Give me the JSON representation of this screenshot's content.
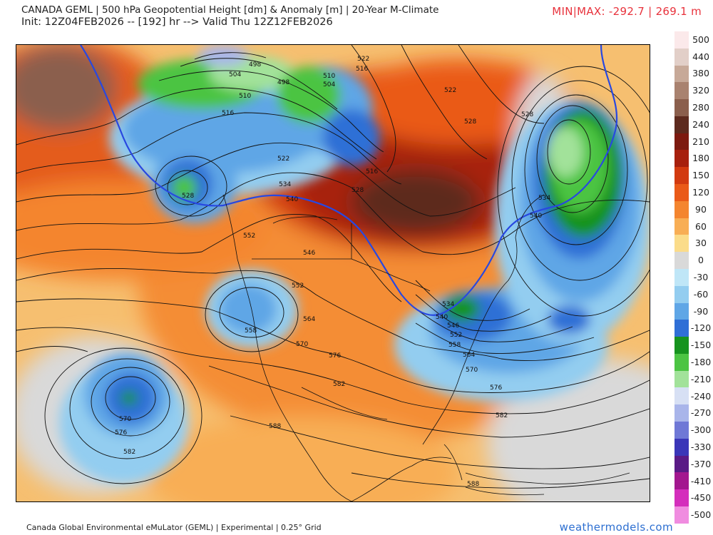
{
  "header": {
    "title": "CANADA GEML | 500 hPa Geopotential Height [dm] & Anomaly [m] | 20-Year M-Climate",
    "init": "Init: 12Z04FEB2026 -- [192] hr --> Valid Thu 12Z12FEB2026",
    "minmax": "MIN|MAX: -292.7 | 269.1 m"
  },
  "footer": {
    "model": "Canada Global Environmental eMuLator (GEML) | Experimental | 0.25° Grid",
    "brand": "weathermodels.com"
  },
  "colorbar": {
    "levels": [
      {
        "label": "500",
        "color": "#fbe9ea"
      },
      {
        "label": "440",
        "color": "#e2cfc8"
      },
      {
        "label": "380",
        "color": "#c7a998"
      },
      {
        "label": "320",
        "color": "#a9826f"
      },
      {
        "label": "280",
        "color": "#8b5f4d"
      },
      {
        "label": "240",
        "color": "#5d2a1e"
      },
      {
        "label": "210",
        "color": "#7d1a10"
      },
      {
        "label": "180",
        "color": "#a7200e"
      },
      {
        "label": "150",
        "color": "#d23a10"
      },
      {
        "label": "120",
        "color": "#ea5a18"
      },
      {
        "label": "90",
        "color": "#f4852f"
      },
      {
        "label": "60",
        "color": "#f8ae55"
      },
      {
        "label": "30",
        "color": "#fbdc8a"
      },
      {
        "label": "0",
        "color": "#d9d9d9"
      },
      {
        "label": "-30",
        "color": "#bfe6f7"
      },
      {
        "label": "-60",
        "color": "#93cdf0"
      },
      {
        "label": "-90",
        "color": "#5fa6e6"
      },
      {
        "label": "-120",
        "color": "#2f6fd6"
      },
      {
        "label": "-150",
        "color": "#16931e"
      },
      {
        "label": "-180",
        "color": "#4cc443"
      },
      {
        "label": "-210",
        "color": "#a2e29a"
      },
      {
        "label": "-240",
        "color": "#d7e0f4"
      },
      {
        "label": "-270",
        "color": "#a9b5ea"
      },
      {
        "label": "-300",
        "color": "#6f78d6"
      },
      {
        "label": "-330",
        "color": "#3a36b8"
      },
      {
        "label": "-370",
        "color": "#5a1a86"
      },
      {
        "label": "-410",
        "color": "#a3178f"
      },
      {
        "label": "-450",
        "color": "#d42ebc"
      },
      {
        "label": "-500",
        "color": "#f08ce0"
      }
    ]
  },
  "map": {
    "contour_labels": [
      {
        "text": "498"
      },
      {
        "text": "504"
      },
      {
        "text": "498"
      },
      {
        "text": "510"
      },
      {
        "text": "504"
      },
      {
        "text": "510"
      },
      {
        "text": "516"
      },
      {
        "text": "516"
      },
      {
        "text": "522"
      },
      {
        "text": "522"
      },
      {
        "text": "522"
      },
      {
        "text": "528"
      },
      {
        "text": "528"
      },
      {
        "text": "528"
      },
      {
        "text": "528"
      },
      {
        "text": "534"
      },
      {
        "text": "534"
      },
      {
        "text": "540"
      },
      {
        "text": "540"
      },
      {
        "text": "540"
      },
      {
        "text": "552"
      },
      {
        "text": "546"
      },
      {
        "text": "552"
      },
      {
        "text": "558"
      },
      {
        "text": "564"
      },
      {
        "text": "570"
      },
      {
        "text": "576"
      },
      {
        "text": "582"
      },
      {
        "text": "534"
      },
      {
        "text": "546"
      },
      {
        "text": "552"
      },
      {
        "text": "558"
      },
      {
        "text": "564"
      },
      {
        "text": "570"
      },
      {
        "text": "576"
      },
      {
        "text": "582"
      },
      {
        "text": "570"
      },
      {
        "text": "576"
      },
      {
        "text": "582"
      },
      {
        "text": "588"
      },
      {
        "text": "588"
      },
      {
        "text": "516"
      }
    ]
  }
}
